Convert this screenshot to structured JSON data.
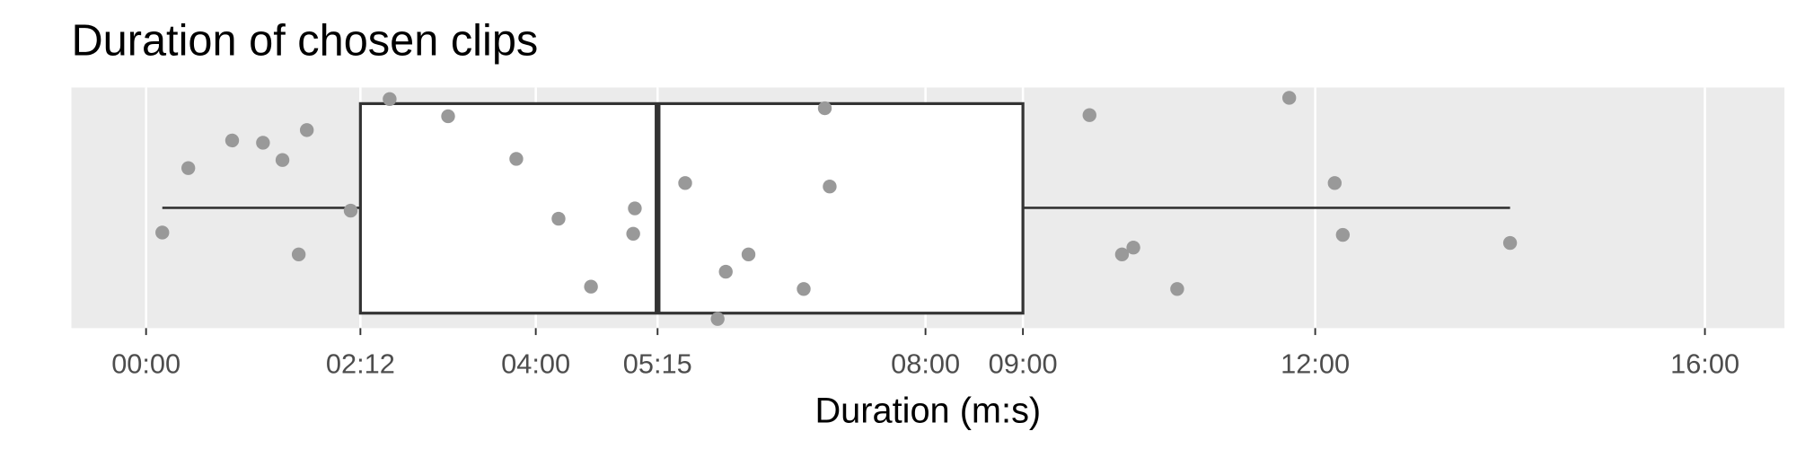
{
  "chart_data": {
    "type": "boxplot",
    "title": "Duration of chosen clips",
    "x_label": "Duration (m:s)",
    "xlim": [
      -46,
      1009
    ],
    "xticks": [
      {
        "value": 0,
        "label": "00:00"
      },
      {
        "value": 132,
        "label": "02:12"
      },
      {
        "value": 240,
        "label": "04:00"
      },
      {
        "value": 315,
        "label": "05:15"
      },
      {
        "value": 480,
        "label": "08:00"
      },
      {
        "value": 540,
        "label": "09:00"
      },
      {
        "value": 720,
        "label": "12:00"
      },
      {
        "value": 960,
        "label": "16:00"
      }
    ],
    "grid": true,
    "box": {
      "whisker_low": 10,
      "q1": 132,
      "median": 315,
      "q3": 540,
      "whisker_high": 840
    },
    "points": [
      10,
      26,
      53,
      72,
      84,
      94,
      99,
      126,
      150,
      186,
      228,
      254,
      274,
      300,
      301,
      332,
      352,
      357,
      371,
      405,
      418,
      421,
      581,
      601,
      608,
      635,
      704,
      732,
      737,
      840
    ],
    "point_color": "#999999",
    "box_color": "#333333",
    "panel_color": "#ebebeb"
  }
}
